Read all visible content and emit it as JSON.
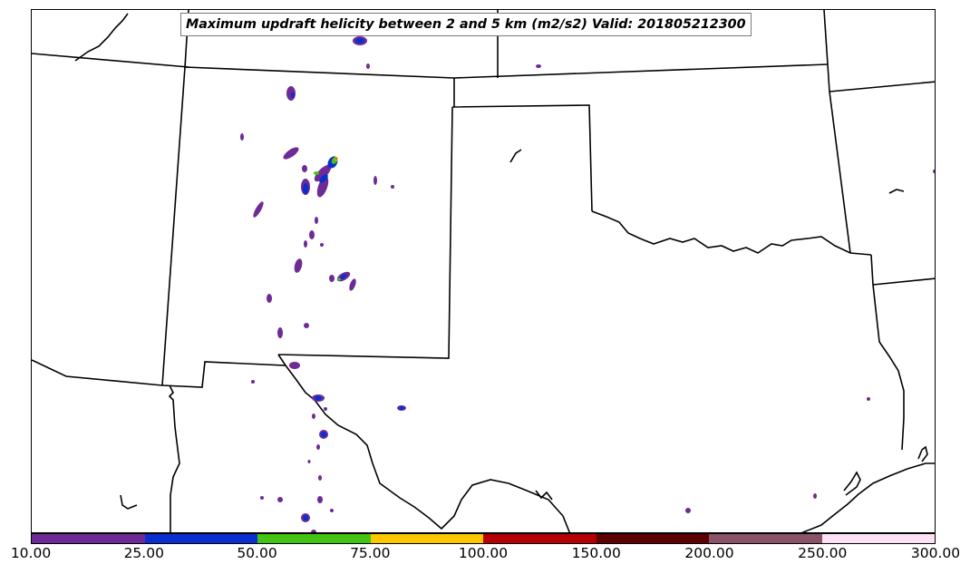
{
  "map": {
    "title": "Maximum updraft helicity between 2 and 5 km (m2/s2) Valid: 201805212300",
    "variable": "Maximum updraft helicity between 2 and 5 km",
    "units": "m2/s2",
    "valid_time": "201805212300",
    "region": "Southern Plains / Southwest US (New Mexico, Texas, Oklahoma)"
  },
  "colorbar": {
    "labels": [
      "10.00",
      "25.00",
      "50.00",
      "75.00",
      "100.00",
      "150.00",
      "200.00",
      "250.00",
      "300.00"
    ],
    "colors": [
      "#6e2b96",
      "#0a2fcf",
      "#43c314",
      "#fcc700",
      "#b40000",
      "#5c0000",
      "#8a5468",
      "#fde1f6"
    ]
  },
  "colors": {
    "boundary": "#000000",
    "purple": "#6e2b96",
    "blue": "#0a2fcf",
    "green": "#43c314",
    "yellow": "#fcc700"
  }
}
